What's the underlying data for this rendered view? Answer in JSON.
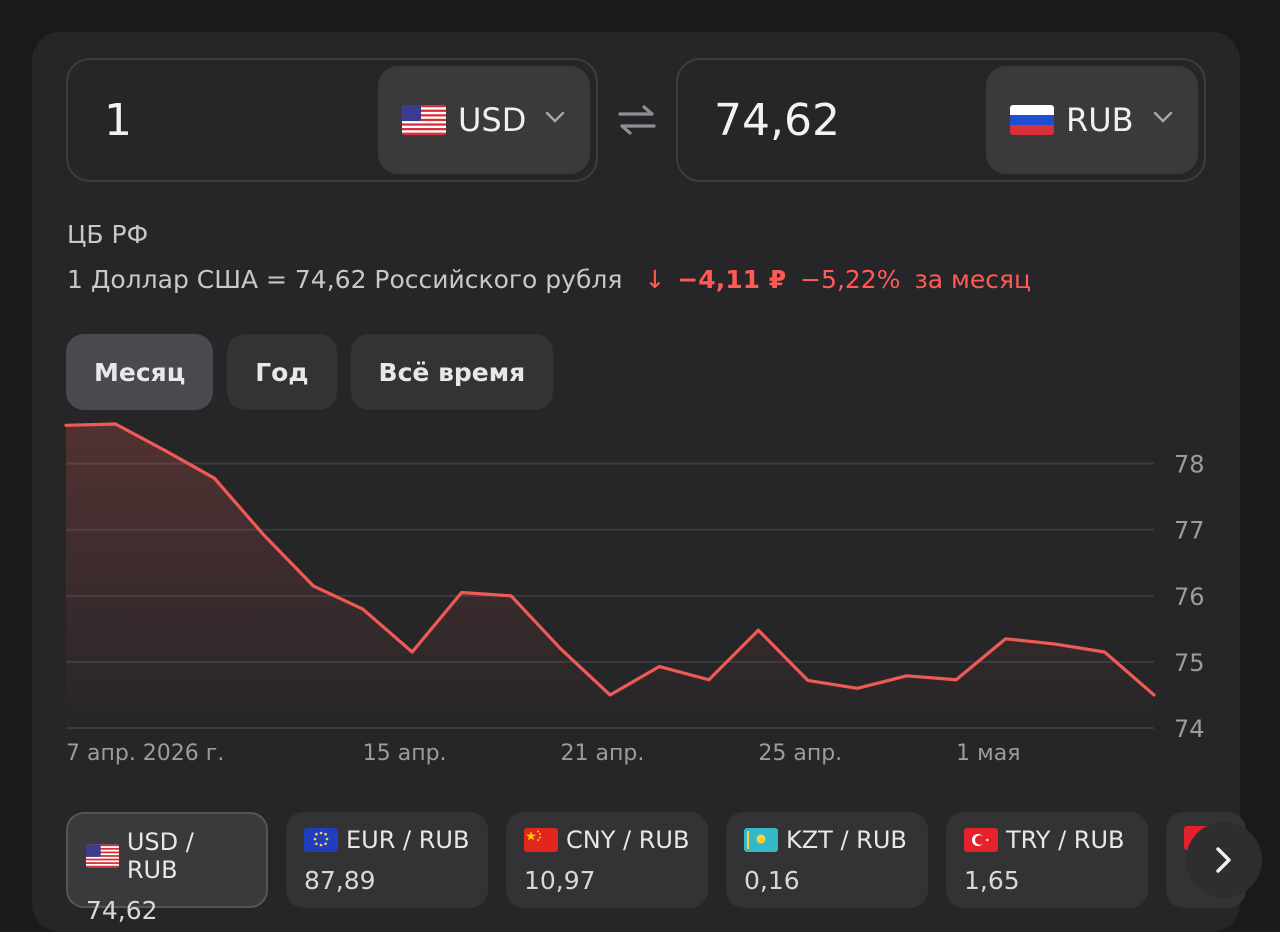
{
  "converter": {
    "from": {
      "amount": "1",
      "code": "USD",
      "flag": "us"
    },
    "to": {
      "amount": "74,62",
      "code": "RUB",
      "flag": "ru"
    }
  },
  "source_label": "ЦБ РФ",
  "rate": {
    "text": "1 Доллар США = 74,62 Российского рубля",
    "arrow": "↓",
    "diff": "−4,11 ₽",
    "percent": "−5,22%",
    "period": "за месяц",
    "trend_color": "#ff5a55"
  },
  "tabs": [
    {
      "label": "Месяц",
      "active": true
    },
    {
      "label": "Год",
      "active": false
    },
    {
      "label": "Всё время",
      "active": false
    }
  ],
  "chart_data": {
    "type": "area",
    "y_ticks": [
      "78",
      "77",
      "76",
      "75",
      "74"
    ],
    "y_tick_values": [
      78,
      77,
      76,
      75,
      74
    ],
    "ylim": [
      74,
      78.6
    ],
    "x_labels": [
      {
        "label": "7 апр. 2026 г.",
        "index": 0
      },
      {
        "label": "15 апр.",
        "index": 6
      },
      {
        "label": "21 апр.",
        "index": 10
      },
      {
        "label": "25 апр.",
        "index": 14
      },
      {
        "label": "1 мая",
        "index": 18
      }
    ],
    "values": [
      78.58,
      78.6,
      78.2,
      77.78,
      76.92,
      76.15,
      75.8,
      75.15,
      76.05,
      76.0,
      75.2,
      74.5,
      74.93,
      74.73,
      75.48,
      74.72,
      74.6,
      74.79,
      74.73,
      75.35,
      75.27,
      75.15,
      74.5
    ],
    "line_color": "#f05a55"
  },
  "pairs": [
    {
      "label": "USD / RUB",
      "value": "74,62",
      "flag": "us",
      "active": true
    },
    {
      "label": "EUR / RUB",
      "value": "87,89",
      "flag": "eu",
      "active": false
    },
    {
      "label": "CNY / RUB",
      "value": "10,97",
      "flag": "cn",
      "active": false
    },
    {
      "label": "KZT / RUB",
      "value": "0,16",
      "flag": "kz",
      "active": false
    },
    {
      "label": "TRY / RUB",
      "value": "1,65",
      "flag": "tr",
      "active": false
    }
  ],
  "icons": {
    "swap": "swap-arrows-icon",
    "chevron": "chevron-down-icon",
    "next": "chevron-right-icon",
    "trend": "arrow-down-icon"
  }
}
